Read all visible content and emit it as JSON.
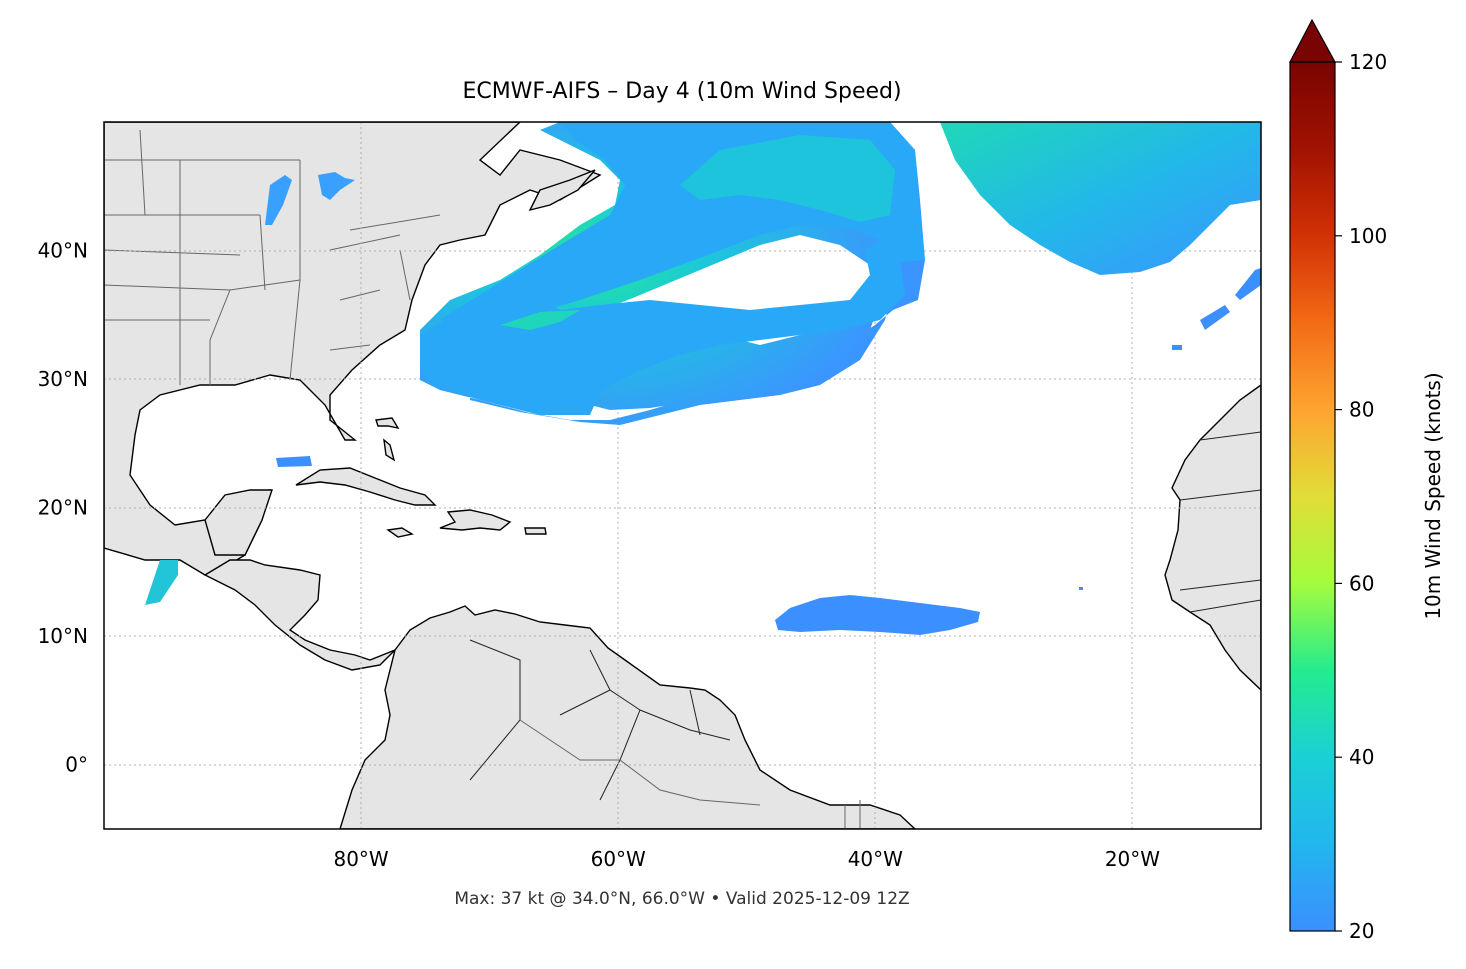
{
  "title": "ECMWF-AIFS – Day 4 (10m Wind Speed)",
  "footer": "Max: 37 kt @ 34.0°N, 66.0°W • Valid 2025-12-09 12Z",
  "map": {
    "lon_range": [
      -100,
      -10
    ],
    "lat_range": [
      -5,
      50
    ],
    "lon_ticks": [
      {
        "value": -80,
        "label": "80°W"
      },
      {
        "value": -60,
        "label": "60°W"
      },
      {
        "value": -40,
        "label": "40°W"
      },
      {
        "value": -20,
        "label": "20°W"
      }
    ],
    "lat_ticks": [
      {
        "value": 40,
        "label": "40°N"
      },
      {
        "value": 30,
        "label": "30°N"
      },
      {
        "value": 20,
        "label": "20°N"
      },
      {
        "value": 10,
        "label": "10°N"
      },
      {
        "value": 0,
        "label": "0°"
      }
    ],
    "land_color": "#e5e5e5",
    "ocean_color": "#ffffff",
    "gridlines": "dotted"
  },
  "colorbar": {
    "label": "10m Wind Speed (knots)",
    "min": 20,
    "max": 120,
    "extend": "max",
    "ticks": [
      {
        "value": 120,
        "label": "120"
      },
      {
        "value": 100,
        "label": "100"
      },
      {
        "value": 80,
        "label": "80"
      },
      {
        "value": 60,
        "label": "60"
      },
      {
        "value": 40,
        "label": "40"
      },
      {
        "value": 20,
        "label": "20"
      }
    ],
    "colormap": "turbo-like",
    "colors": [
      "#3b8fff",
      "#1bd0d5",
      "#24ec8e",
      "#a4fc3c",
      "#e1dd37",
      "#fea431",
      "#f36b15",
      "#d23105",
      "#a11201",
      "#7a0403"
    ]
  },
  "wind_max": {
    "value_kt": 37,
    "lat": 34.0,
    "lon": -66.0,
    "valid": "2025-12-09 12Z"
  }
}
